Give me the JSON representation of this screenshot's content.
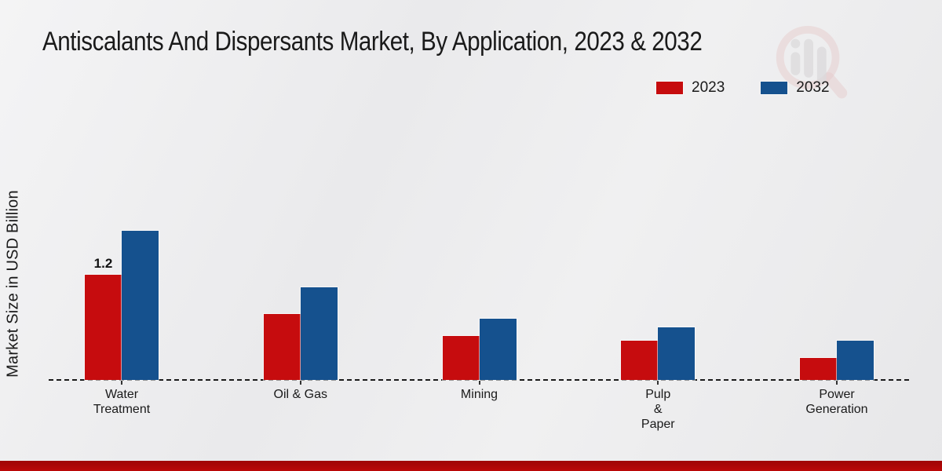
{
  "page": {
    "title": "Antiscalants And Dispersants Market, By Application, 2023 & 2032",
    "ylabel": "Market Size in USD Billion"
  },
  "colors": {
    "series_2023": "#c60c0e",
    "series_2032": "#15518e",
    "text": "#1a1a1a",
    "axis": "#1a1a1a",
    "footer_bar": "#bb0808"
  },
  "legend": {
    "items": [
      {
        "label": "2023",
        "color": "#c60c0e"
      },
      {
        "label": "2032",
        "color": "#15518e"
      }
    ]
  },
  "chart_data": {
    "type": "bar",
    "title": "Antiscalants And Dispersants Market, By Application, 2023 & 2032",
    "xlabel": "",
    "ylabel": "Market Size in USD Billion",
    "unit": "USD Billion",
    "categories": [
      "Water Treatment",
      "Oil & Gas",
      "Mining",
      "Pulp & Paper",
      "Power Generation"
    ],
    "category_display": [
      "Water\nTreatment",
      "Oil & Gas",
      "Mining",
      "Pulp\n&\nPaper",
      "Power\nGeneration"
    ],
    "series": [
      {
        "name": "2023",
        "color": "#c60c0e",
        "values": [
          1.2,
          0.75,
          0.5,
          0.45,
          0.25
        ]
      },
      {
        "name": "2032",
        "color": "#15518e",
        "values": [
          1.7,
          1.05,
          0.7,
          0.6,
          0.45
        ]
      }
    ],
    "data_labels": [
      {
        "series_index": 0,
        "category_index": 0,
        "text": "1.2"
      }
    ],
    "ylim": [
      0,
      2.0
    ],
    "grid": false,
    "legend_position": "top-right",
    "baseline_style": "dashed"
  },
  "watermark": {
    "name": "magnifier-bar-chart-logo"
  }
}
